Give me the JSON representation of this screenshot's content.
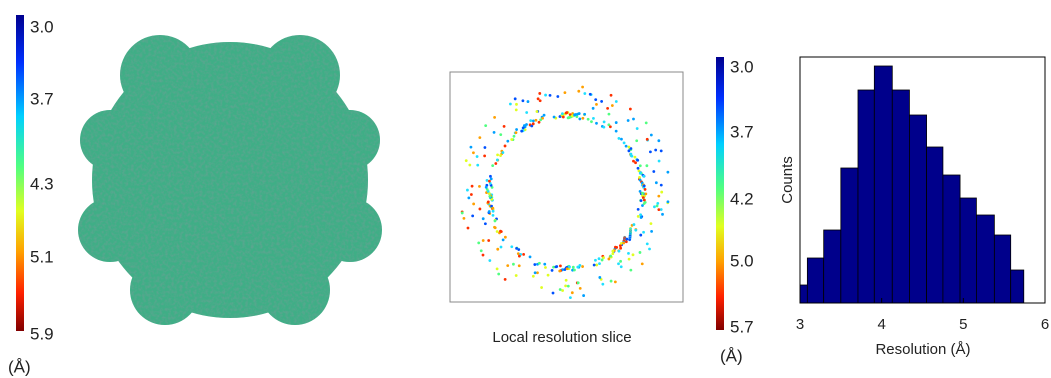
{
  "colorbar_left": {
    "ticks": [
      "3.0",
      "3.7",
      "4.3",
      "5.1",
      "5.9"
    ],
    "unit": "(Å)"
  },
  "slice": {
    "caption": "Local resolution slice"
  },
  "colorbar_right": {
    "ticks": [
      "3.0",
      "3.7",
      "4.2",
      "5.0",
      "5.7"
    ],
    "unit": "(Å)"
  },
  "chart_data": {
    "type": "histogram",
    "x_label": "Resolution (Å)",
    "y_label": "Counts",
    "bins": [
      3.0,
      3.09,
      3.29,
      3.5,
      3.71,
      3.91,
      4.13,
      4.34,
      4.55,
      4.75,
      4.96,
      5.16,
      5.38,
      5.58,
      5.74
    ],
    "counts": [
      18,
      45,
      73,
      135,
      213,
      237,
      213,
      188,
      156,
      128,
      105,
      88,
      68,
      33
    ],
    "color": "#00008b",
    "xlim": [
      3,
      6
    ],
    "xticks": [
      3,
      4,
      5,
      6
    ],
    "ylim": [
      0,
      246
    ]
  }
}
